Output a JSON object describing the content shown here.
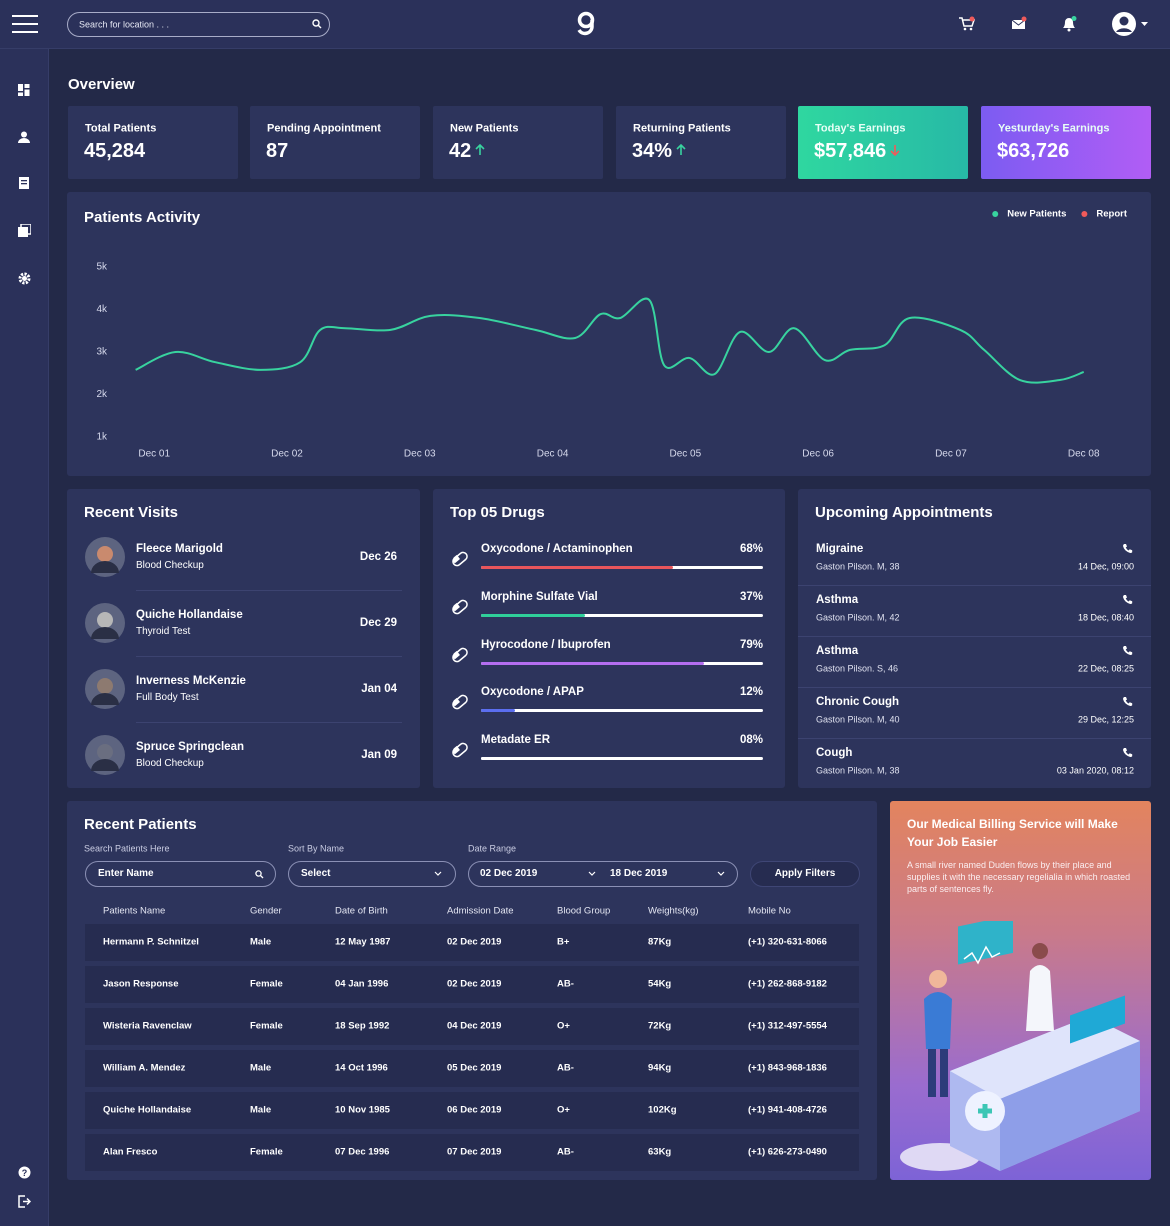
{
  "header": {
    "search_placeholder": "Search for location . . ."
  },
  "overview": {
    "title": "Overview",
    "cards": [
      {
        "label": "Total Patients",
        "value": "45,284"
      },
      {
        "label": "Pending Appointment",
        "value": "87"
      },
      {
        "label": "New Patients",
        "value": "42",
        "trend": "up"
      },
      {
        "label": "Returning Patients",
        "value": "34%",
        "trend": "up"
      },
      {
        "label": "Today's Earnings",
        "value": "$57,846",
        "trend": "down"
      },
      {
        "label": "Yesturday's Earnings",
        "value": "$63,726"
      }
    ]
  },
  "chart_data": {
    "type": "line",
    "title": "Patients Activity",
    "x": [
      0.86,
      1.16,
      1.46,
      1.8,
      2.1,
      2.25,
      2.44,
      2.78,
      3.08,
      3.45,
      3.87,
      4.17,
      4.36,
      4.51,
      4.73,
      4.84,
      5.03,
      5.22,
      5.41,
      5.63,
      5.82,
      6.05,
      6.24,
      6.5,
      6.69,
      7.07,
      7.25,
      7.52,
      7.82,
      8.0
    ],
    "series": [
      {
        "name": "New Patients",
        "color": "#38d39f",
        "values": [
          2580,
          3000,
          2760,
          2580,
          2760,
          3520,
          3560,
          3520,
          3850,
          3800,
          3520,
          3330,
          3890,
          3800,
          4220,
          2690,
          2860,
          2480,
          3470,
          3000,
          3560,
          2810,
          3050,
          3160,
          3800,
          3520,
          3050,
          2340,
          2340,
          2530
        ]
      },
      {
        "name": "Report",
        "color": "#f05a5a",
        "values": [
          null,
          null,
          null,
          null,
          null,
          null,
          null,
          null,
          null,
          null,
          null,
          null,
          null,
          null,
          null,
          null,
          null,
          null,
          null,
          null,
          null,
          null,
          null,
          null,
          null,
          null,
          null,
          null,
          null,
          null
        ]
      }
    ],
    "xlim": [
      0.75,
      8.1
    ],
    "xticks": [
      {
        "value": 1,
        "label": "Dec 01"
      },
      {
        "value": 2,
        "label": "Dec 02"
      },
      {
        "value": 3,
        "label": "Dec 03"
      },
      {
        "value": 4,
        "label": "Dec 04"
      },
      {
        "value": 5,
        "label": "Dec 05"
      },
      {
        "value": 6,
        "label": "Dec 06"
      },
      {
        "value": 7,
        "label": "Dec 07"
      },
      {
        "value": 8,
        "label": "Dec 08"
      }
    ],
    "ylim": [
      1000,
      5000
    ],
    "yticks": [
      {
        "value": 1000,
        "label": "1k"
      },
      {
        "value": 2000,
        "label": "2k"
      },
      {
        "value": 3000,
        "label": "3k"
      },
      {
        "value": 4000,
        "label": "4k"
      },
      {
        "value": 5000,
        "label": "5k"
      }
    ],
    "grid": false,
    "legend": "top-right"
  },
  "recent_visits": {
    "title": "Recent Visits",
    "items": [
      {
        "name": "Fleece Marigold",
        "test": "Blood  Checkup",
        "date": "Dec 26"
      },
      {
        "name": "Quiche Hollandaise",
        "test": "Thyroid Test",
        "date": "Dec 29"
      },
      {
        "name": "Inverness McKenzie",
        "test": "Full Body Test",
        "date": "Jan 04"
      },
      {
        "name": "Spruce Springclean",
        "test": "Blood  Checkup",
        "date": "Jan 09"
      }
    ]
  },
  "top_drugs": {
    "title": "Top 05 Drugs",
    "items": [
      {
        "name": "Oxycodone / Actaminophen",
        "value": 68,
        "label": "68%",
        "color": "#e8555b"
      },
      {
        "name": "Morphine Sulfate Vial",
        "value": 37,
        "label": "37%",
        "color": "#2fcf9a"
      },
      {
        "name": "Hyrocodone / Ibuprofen",
        "value": 79,
        "label": "79%",
        "color": "#b46ef0"
      },
      {
        "name": "Oxycodone / APAP",
        "value": 12,
        "label": "12%",
        "color": "#5b6ef0"
      },
      {
        "name": "Metadate ER",
        "value": 8,
        "label": "08%",
        "color": "#ffffff"
      }
    ]
  },
  "appointments": {
    "title": "Upcoming Appointments",
    "items": [
      {
        "condition": "Migraine",
        "patient": "Gaston Pilson. M, 38",
        "time": "14 Dec, 09:00"
      },
      {
        "condition": "Asthma",
        "patient": "Gaston Pilson. M, 42",
        "time": "18 Dec, 08:40"
      },
      {
        "condition": "Asthma",
        "patient": "Gaston Pilson. S, 46",
        "time": "22 Dec, 08:25"
      },
      {
        "condition": "Chronic Cough",
        "patient": "Gaston Pilson. M, 40",
        "time": "29 Dec, 12:25"
      },
      {
        "condition": "Cough",
        "patient": "Gaston Pilson. M, 38",
        "time": "03 Jan 2020, 08:12"
      }
    ]
  },
  "recent_patients": {
    "title": "Recent Patients",
    "filters": {
      "search_label": "Search Patients Here",
      "search_placeholder": "Enter Name",
      "sort_label": "Sort By Name",
      "sort_value": "Select",
      "date_label": "Date Range",
      "date_from": "02 Dec 2019",
      "date_to": "18 Dec 2019",
      "apply": "Apply Filters"
    },
    "columns": [
      "Patients Name",
      "Gender",
      "Date of Birth",
      "Admission Date",
      "Blood Group",
      "Weights(kg)",
      "Mobile No"
    ],
    "rows": [
      [
        "Hermann P. Schnitzel",
        "Male",
        "12 May 1987",
        "02 Dec 2019",
        "B+",
        "87Kg",
        "(+1) 320-631-8066"
      ],
      [
        "Jason Response",
        "Female",
        "04 Jan 1996",
        "02 Dec 2019",
        "AB-",
        "54Kg",
        "(+1) 262-868-9182"
      ],
      [
        "Wisteria Ravenclaw",
        "Female",
        "18 Sep 1992",
        "04 Dec 2019",
        "O+",
        "72Kg",
        "(+1) 312-497-5554"
      ],
      [
        "William A. Mendez",
        "Male",
        "14 Oct 1996",
        "05 Dec 2019",
        "AB-",
        "94Kg",
        "(+1) 843-968-1836"
      ],
      [
        "Quiche Hollandaise",
        "Male",
        "10 Nov 1985",
        "06 Dec 2019",
        "O+",
        "102Kg",
        "(+1) 941-408-4726"
      ],
      [
        "Alan Fresco",
        "Female",
        "07 Dec 1996",
        "07 Dec 2019",
        "AB-",
        "63Kg",
        "(+1) 626-273-0490"
      ]
    ]
  },
  "promo": {
    "title": "Our Medical Billing Service will Make Your Job Easier",
    "text": "A small river named Duden flows by their place and supplies it with the necessary regelialia in which roasted parts of sentences fly."
  }
}
